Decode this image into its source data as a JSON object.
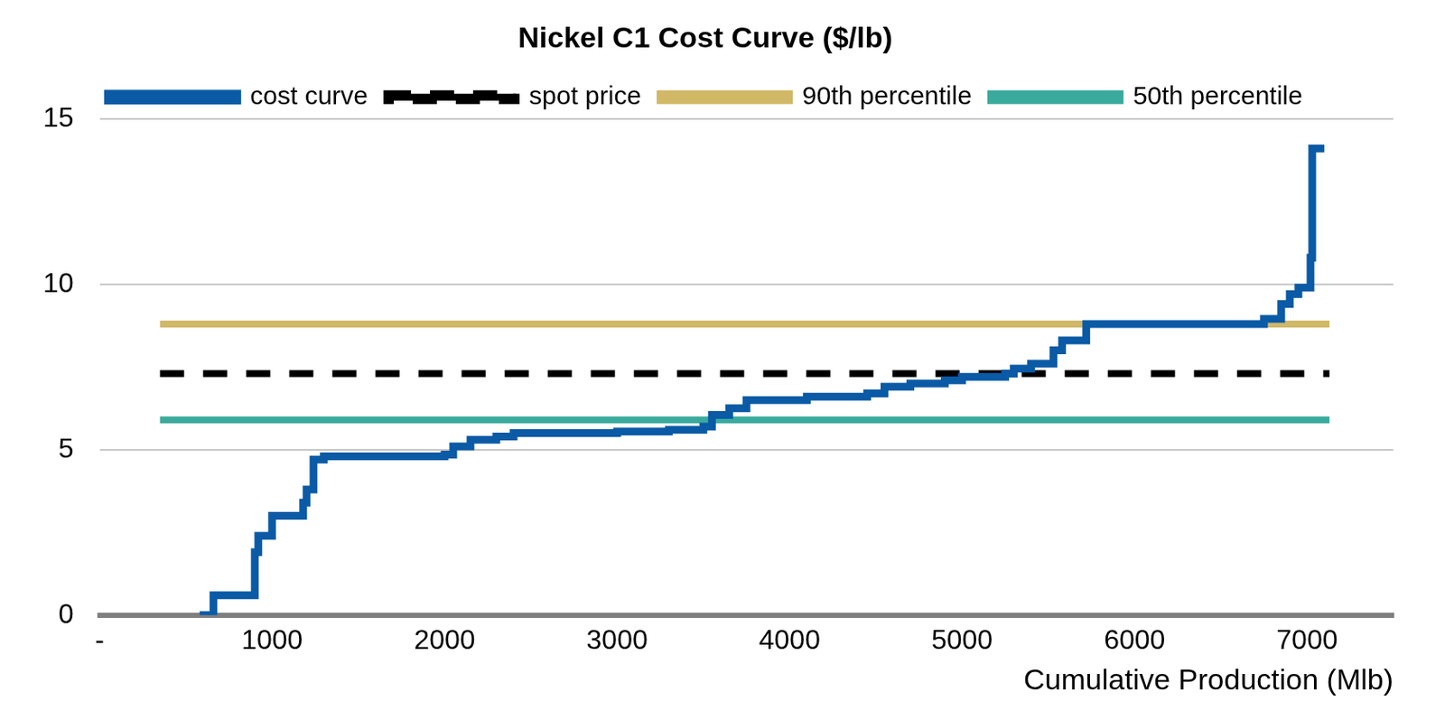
{
  "chart_data": {
    "type": "line",
    "title": "Nickel C1 Cost Curve ($/lb)",
    "x_label": "Cumulative Production (Mlb)",
    "xlim": [
      0,
      7500
    ],
    "xticks": [
      {
        "value": 0,
        "label": "-"
      },
      1000,
      2000,
      3000,
      4000,
      5000,
      6000,
      7000
    ],
    "ylim": [
      0,
      15
    ],
    "yticks": [
      0,
      5,
      10,
      15
    ],
    "grid": true,
    "legend": "top",
    "series": [
      {
        "name": "cost curve",
        "color": "#0a5aa6",
        "line_style": "stepped",
        "x": [
          580,
          660,
          900,
          920,
          1000,
          1180,
          1200,
          1240,
          1300,
          2000,
          2050,
          2150,
          2300,
          2400,
          3000,
          3300,
          3500,
          3550,
          3650,
          3750,
          4100,
          4450,
          4550,
          4700,
          4900,
          5000,
          5250,
          5300,
          5400,
          5530,
          5580,
          5720,
          6750,
          6850,
          6900,
          6950,
          7020,
          7030,
          7100
        ],
        "values": [
          0,
          0.6,
          1.9,
          2.4,
          3.0,
          3.4,
          3.8,
          4.7,
          4.8,
          4.85,
          5.1,
          5.3,
          5.4,
          5.5,
          5.55,
          5.6,
          5.7,
          6.05,
          6.25,
          6.5,
          6.6,
          6.7,
          6.9,
          7.0,
          7.1,
          7.2,
          7.3,
          7.45,
          7.6,
          8.0,
          8.3,
          8.8,
          8.95,
          9.4,
          9.7,
          9.9,
          10.8,
          14.1,
          14.1
        ]
      },
      {
        "name": "spot price",
        "color": "#000000",
        "line_style": "dashed",
        "x": [
          350,
          7130
        ],
        "values": [
          7.3,
          7.3
        ]
      },
      {
        "name": "90th percentile",
        "color": "#d1b866",
        "line_style": "solid",
        "x": [
          350,
          7130
        ],
        "values": [
          8.8,
          8.8
        ]
      },
      {
        "name": "50th percentile",
        "color": "#3aaa9c",
        "line_style": "solid",
        "x": [
          350,
          7130
        ],
        "values": [
          5.9,
          5.9
        ]
      }
    ]
  }
}
